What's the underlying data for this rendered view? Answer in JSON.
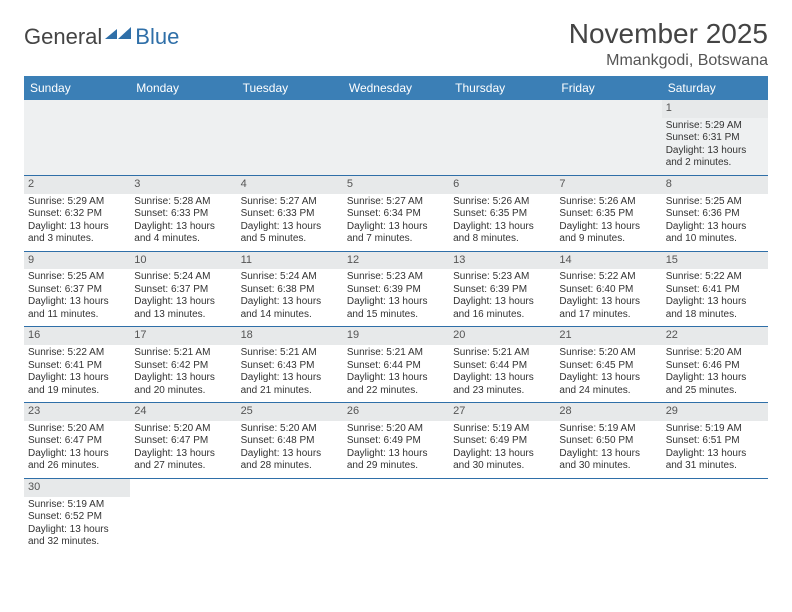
{
  "logo": {
    "text1": "General",
    "text2": "Blue"
  },
  "title": "November 2025",
  "location": "Mmankgodi, Botswana",
  "colors": {
    "header_bg": "#3b7fb6",
    "header_text": "#ffffff",
    "row_divider": "#2f6fa8",
    "daynum_bg": "#e7e9ea",
    "first_row_bg": "#eef0f1"
  },
  "days_of_week": [
    "Sunday",
    "Monday",
    "Tuesday",
    "Wednesday",
    "Thursday",
    "Friday",
    "Saturday"
  ],
  "weeks": [
    [
      null,
      null,
      null,
      null,
      null,
      null,
      {
        "n": "1",
        "sunrise": "5:29 AM",
        "sunset": "6:31 PM",
        "daylight": "13 hours and 2 minutes."
      }
    ],
    [
      {
        "n": "2",
        "sunrise": "5:29 AM",
        "sunset": "6:32 PM",
        "daylight": "13 hours and 3 minutes."
      },
      {
        "n": "3",
        "sunrise": "5:28 AM",
        "sunset": "6:33 PM",
        "daylight": "13 hours and 4 minutes."
      },
      {
        "n": "4",
        "sunrise": "5:27 AM",
        "sunset": "6:33 PM",
        "daylight": "13 hours and 5 minutes."
      },
      {
        "n": "5",
        "sunrise": "5:27 AM",
        "sunset": "6:34 PM",
        "daylight": "13 hours and 7 minutes."
      },
      {
        "n": "6",
        "sunrise": "5:26 AM",
        "sunset": "6:35 PM",
        "daylight": "13 hours and 8 minutes."
      },
      {
        "n": "7",
        "sunrise": "5:26 AM",
        "sunset": "6:35 PM",
        "daylight": "13 hours and 9 minutes."
      },
      {
        "n": "8",
        "sunrise": "5:25 AM",
        "sunset": "6:36 PM",
        "daylight": "13 hours and 10 minutes."
      }
    ],
    [
      {
        "n": "9",
        "sunrise": "5:25 AM",
        "sunset": "6:37 PM",
        "daylight": "13 hours and 11 minutes."
      },
      {
        "n": "10",
        "sunrise": "5:24 AM",
        "sunset": "6:37 PM",
        "daylight": "13 hours and 13 minutes."
      },
      {
        "n": "11",
        "sunrise": "5:24 AM",
        "sunset": "6:38 PM",
        "daylight": "13 hours and 14 minutes."
      },
      {
        "n": "12",
        "sunrise": "5:23 AM",
        "sunset": "6:39 PM",
        "daylight": "13 hours and 15 minutes."
      },
      {
        "n": "13",
        "sunrise": "5:23 AM",
        "sunset": "6:39 PM",
        "daylight": "13 hours and 16 minutes."
      },
      {
        "n": "14",
        "sunrise": "5:22 AM",
        "sunset": "6:40 PM",
        "daylight": "13 hours and 17 minutes."
      },
      {
        "n": "15",
        "sunrise": "5:22 AM",
        "sunset": "6:41 PM",
        "daylight": "13 hours and 18 minutes."
      }
    ],
    [
      {
        "n": "16",
        "sunrise": "5:22 AM",
        "sunset": "6:41 PM",
        "daylight": "13 hours and 19 minutes."
      },
      {
        "n": "17",
        "sunrise": "5:21 AM",
        "sunset": "6:42 PM",
        "daylight": "13 hours and 20 minutes."
      },
      {
        "n": "18",
        "sunrise": "5:21 AM",
        "sunset": "6:43 PM",
        "daylight": "13 hours and 21 minutes."
      },
      {
        "n": "19",
        "sunrise": "5:21 AM",
        "sunset": "6:44 PM",
        "daylight": "13 hours and 22 minutes."
      },
      {
        "n": "20",
        "sunrise": "5:21 AM",
        "sunset": "6:44 PM",
        "daylight": "13 hours and 23 minutes."
      },
      {
        "n": "21",
        "sunrise": "5:20 AM",
        "sunset": "6:45 PM",
        "daylight": "13 hours and 24 minutes."
      },
      {
        "n": "22",
        "sunrise": "5:20 AM",
        "sunset": "6:46 PM",
        "daylight": "13 hours and 25 minutes."
      }
    ],
    [
      {
        "n": "23",
        "sunrise": "5:20 AM",
        "sunset": "6:47 PM",
        "daylight": "13 hours and 26 minutes."
      },
      {
        "n": "24",
        "sunrise": "5:20 AM",
        "sunset": "6:47 PM",
        "daylight": "13 hours and 27 minutes."
      },
      {
        "n": "25",
        "sunrise": "5:20 AM",
        "sunset": "6:48 PM",
        "daylight": "13 hours and 28 minutes."
      },
      {
        "n": "26",
        "sunrise": "5:20 AM",
        "sunset": "6:49 PM",
        "daylight": "13 hours and 29 minutes."
      },
      {
        "n": "27",
        "sunrise": "5:19 AM",
        "sunset": "6:49 PM",
        "daylight": "13 hours and 30 minutes."
      },
      {
        "n": "28",
        "sunrise": "5:19 AM",
        "sunset": "6:50 PM",
        "daylight": "13 hours and 30 minutes."
      },
      {
        "n": "29",
        "sunrise": "5:19 AM",
        "sunset": "6:51 PM",
        "daylight": "13 hours and 31 minutes."
      }
    ],
    [
      {
        "n": "30",
        "sunrise": "5:19 AM",
        "sunset": "6:52 PM",
        "daylight": "13 hours and 32 minutes."
      },
      null,
      null,
      null,
      null,
      null,
      null
    ]
  ],
  "labels": {
    "sunrise": "Sunrise:",
    "sunset": "Sunset:",
    "daylight": "Daylight:"
  }
}
